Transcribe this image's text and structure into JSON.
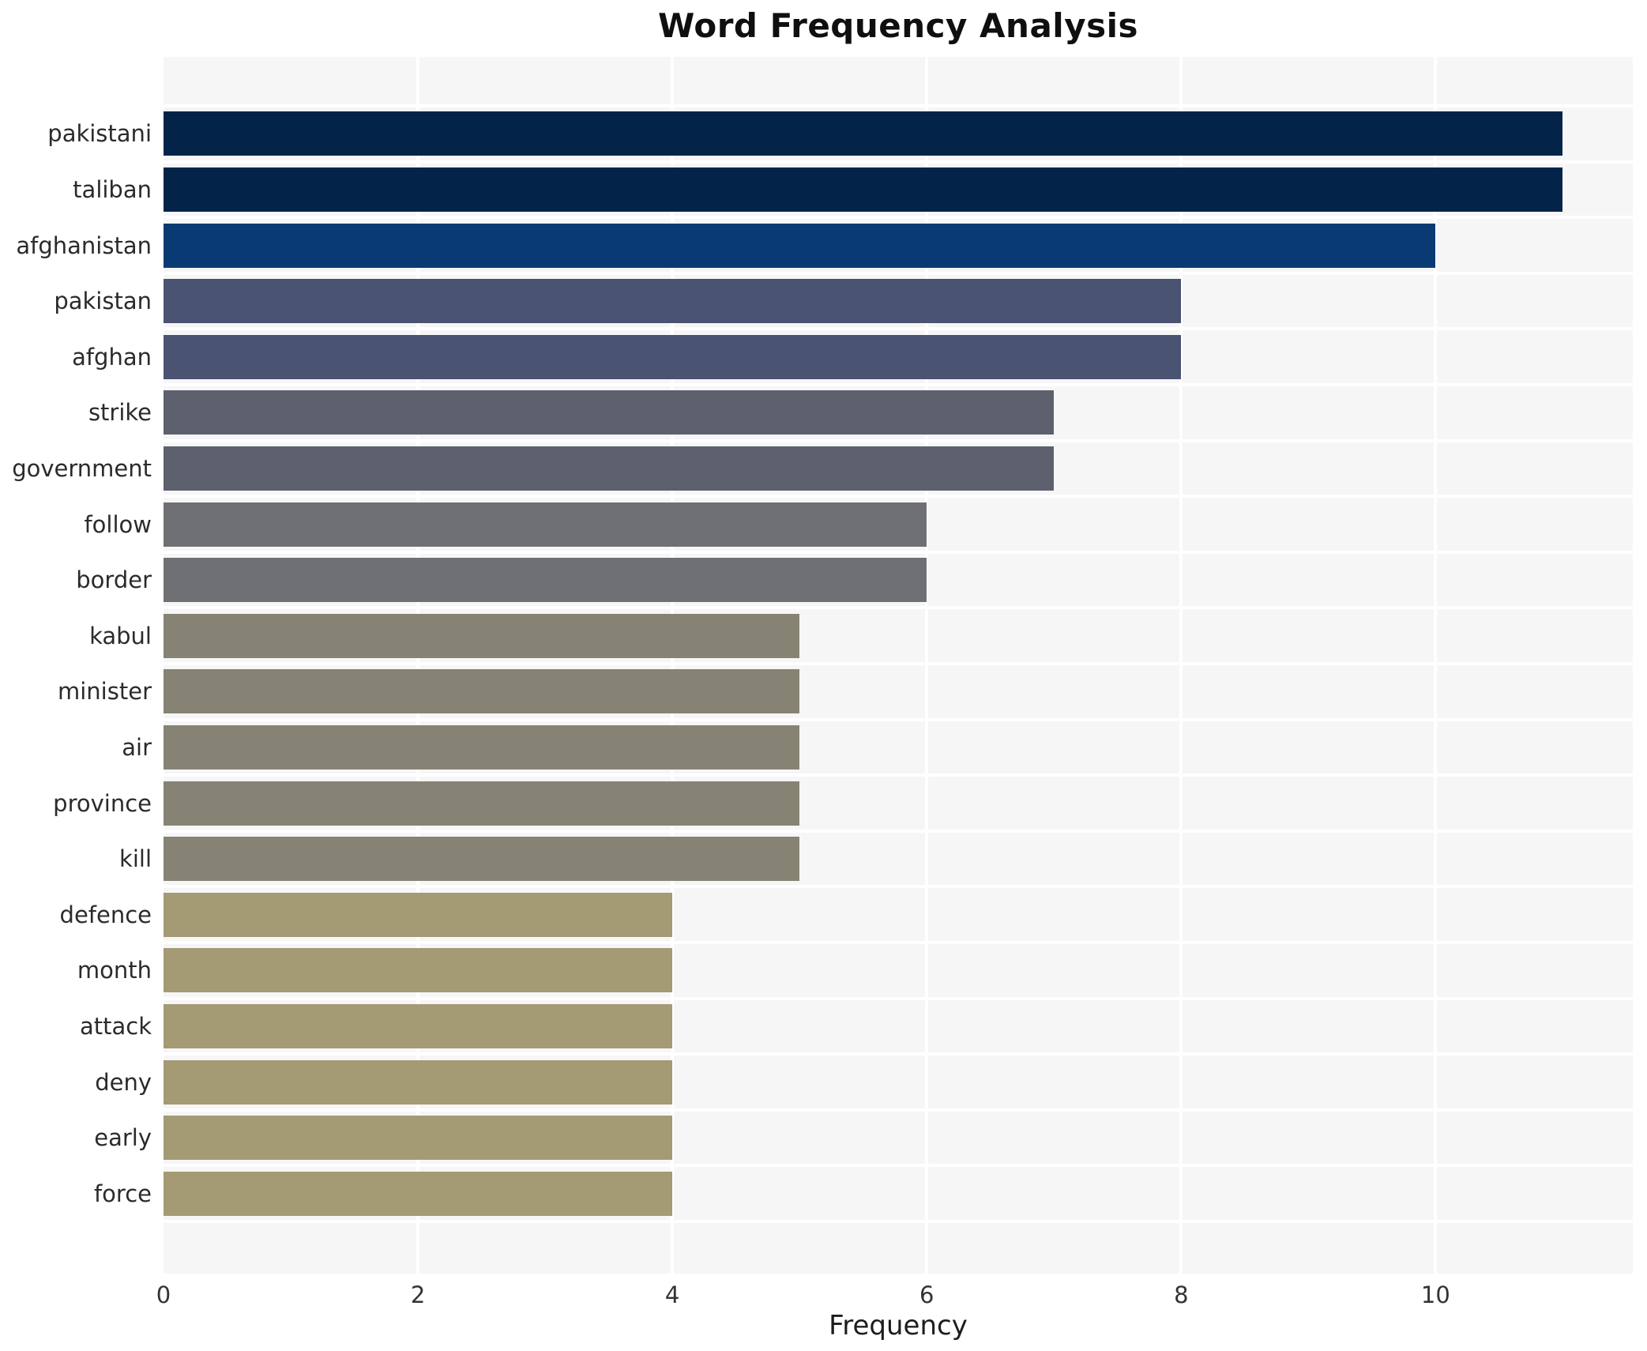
{
  "chart_data": {
    "type": "bar",
    "orientation": "horizontal",
    "title": "Word Frequency Analysis",
    "xlabel": "Frequency",
    "ylabel": "",
    "categories": [
      "pakistani",
      "taliban",
      "afghanistan",
      "pakistan",
      "afghan",
      "strike",
      "government",
      "follow",
      "border",
      "kabul",
      "minister",
      "air",
      "province",
      "kill",
      "defence",
      "month",
      "attack",
      "deny",
      "early",
      "force"
    ],
    "values": [
      11,
      11,
      10,
      8,
      8,
      7,
      7,
      6,
      6,
      5,
      5,
      5,
      5,
      5,
      4,
      4,
      4,
      4,
      4,
      4
    ],
    "bar_colors": [
      "#032349",
      "#032349",
      "#093a74",
      "#4a5371",
      "#4a5371",
      "#5d616e",
      "#5d616e",
      "#6f7074",
      "#6f7074",
      "#868374",
      "#868374",
      "#868374",
      "#868374",
      "#868374",
      "#a49a74",
      "#a49a74",
      "#a49a74",
      "#a49a74",
      "#a49a74",
      "#a49a74"
    ],
    "x_ticks": [
      0,
      2,
      4,
      6,
      8,
      10
    ],
    "xlim": [
      0,
      11.55
    ],
    "grid": true,
    "grid_color": "#ffffff",
    "plot_background": "#f6f6f7",
    "legend": "none"
  }
}
